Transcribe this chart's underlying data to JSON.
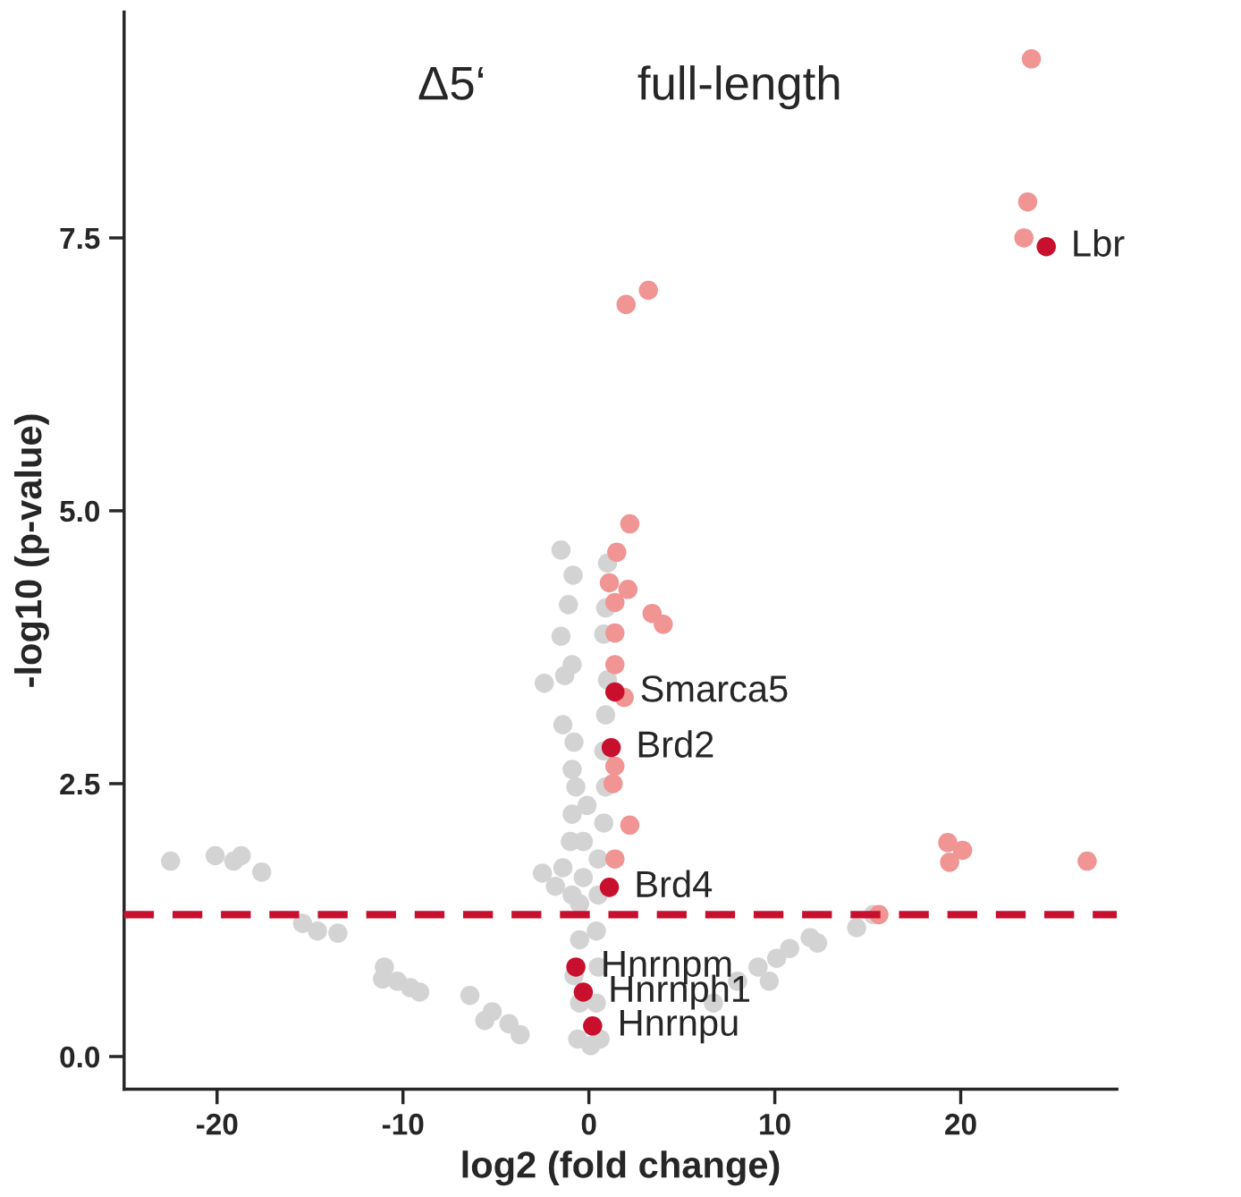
{
  "chart_data": {
    "type": "scatter",
    "xlabel": "log2 (fold change)",
    "ylabel": "-log10 (p-value)",
    "xlim": [
      -25,
      28.4
    ],
    "ylim": [
      -0.3,
      9.57
    ],
    "xticks": [
      -20,
      -10,
      0,
      10,
      20
    ],
    "yticks": [
      {
        "value": 0,
        "label": "0.0"
      },
      {
        "value": 2.5,
        "label": "2.5"
      },
      {
        "value": 5,
        "label": "5.0"
      },
      {
        "value": 7.5,
        "label": "7.5"
      }
    ],
    "grid": false,
    "legend": false,
    "marker": "circle",
    "series": [
      {
        "color": "#d3d3d3",
        "x": [
          -22.5,
          -20.1,
          -18.7,
          -19.1,
          -17.6,
          -15.4,
          -14.6,
          -13.5,
          -11.0,
          -10.3,
          -9.6,
          -9.1,
          -11.1,
          -6.4,
          -5.2,
          -4.3,
          -3.7,
          -5.6,
          6.7,
          8.0,
          9.1,
          10.1,
          10.8,
          11.9,
          12.3,
          14.4,
          15.3,
          9.7,
          -1.5,
          -0.85,
          -1.1,
          -1.5,
          -2.4,
          -1.3,
          -0.9,
          -1.4,
          -0.8,
          -0.9,
          -0.7,
          -0.9,
          -1.0,
          -1.4,
          -2.5,
          -1.8,
          -0.5,
          -0.5,
          -0.8,
          -0.5,
          -0.6,
          0.1,
          0.6,
          0.4,
          0.5,
          0.4,
          0.5,
          0.5,
          0.8,
          0.9,
          0.8,
          0.9,
          1.0,
          0.8,
          0.9,
          1.0,
          -0.3,
          -0.1,
          -0.3,
          -0.9
        ],
        "values": [
          1.79,
          1.84,
          1.84,
          1.79,
          1.69,
          1.22,
          1.15,
          1.13,
          0.82,
          0.69,
          0.63,
          0.59,
          0.71,
          0.56,
          0.41,
          0.3,
          0.2,
          0.33,
          0.49,
          0.69,
          0.82,
          0.9,
          0.99,
          1.09,
          1.04,
          1.18,
          1.3,
          0.69,
          4.64,
          4.41,
          4.14,
          3.85,
          3.42,
          3.49,
          3.59,
          3.04,
          2.88,
          2.63,
          2.47,
          2.22,
          1.97,
          1.73,
          1.68,
          1.56,
          1.4,
          1.07,
          0.74,
          0.49,
          0.16,
          0.1,
          0.16,
          0.49,
          0.82,
          1.15,
          1.48,
          1.81,
          2.14,
          2.47,
          2.8,
          3.13,
          3.45,
          3.87,
          4.11,
          4.52,
          1.97,
          2.3,
          1.64,
          1.48
        ]
      },
      {
        "color": "#f09494",
        "x": [
          23.8,
          23.6,
          23.4,
          3.2,
          2.0,
          2.2,
          1.5,
          1.1,
          1.4,
          2.1,
          3.4,
          4.0,
          1.4,
          1.4,
          1.9,
          1.4,
          1.3,
          2.2,
          1.4,
          19.3,
          20.1,
          19.4,
          26.8,
          15.6
        ],
        "values": [
          9.14,
          7.83,
          7.5,
          7.02,
          6.89,
          4.88,
          4.62,
          4.34,
          4.16,
          4.28,
          4.06,
          3.96,
          3.88,
          3.59,
          3.29,
          2.66,
          2.5,
          2.12,
          1.81,
          1.96,
          1.89,
          1.78,
          1.79,
          1.3
        ]
      },
      {
        "color": "#c8102e",
        "x": [
          24.6,
          1.4,
          1.2,
          1.1,
          -0.7,
          -0.3,
          0.2
        ],
        "values": [
          7.42,
          3.34,
          2.83,
          1.55,
          0.82,
          0.59,
          0.28
        ]
      }
    ],
    "ref_lines": [
      {
        "axis": "y",
        "value": 1.3,
        "color": "#c8102e",
        "line_style": "dashed"
      }
    ],
    "annotations": [
      "Δ5‘",
      "full-length",
      {
        "text": "Lbr",
        "x": 24.6,
        "y": 7.42
      },
      {
        "text": "Smarca5",
        "x": 1.4,
        "y": 3.34
      },
      {
        "text": "Brd2",
        "x": 1.2,
        "y": 2.83
      },
      {
        "text": "Brd4",
        "x": 1.1,
        "y": 1.55
      },
      {
        "text": "Hnrnpm",
        "x": -0.7,
        "y": 0.82
      },
      {
        "text": "Hnrnph1",
        "x": -0.3,
        "y": 0.59
      },
      {
        "text": "Hnrnpu",
        "x": 0.2,
        "y": 0.28
      }
    ]
  }
}
